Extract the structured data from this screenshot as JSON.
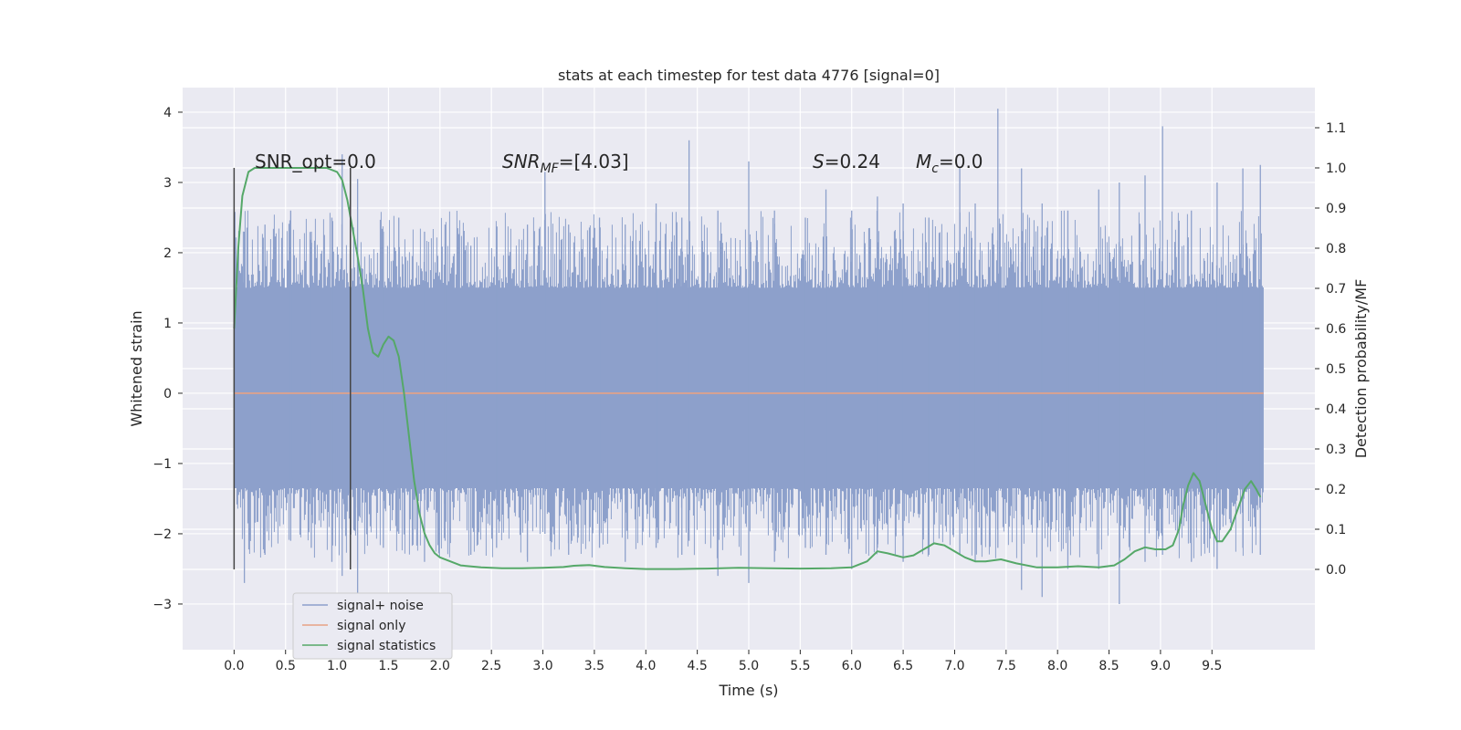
{
  "chart_data": {
    "type": "line",
    "title": "stats at each timestep for test data 4776 [signal=0]",
    "xlabel": "Time (s)",
    "ylabel": "Whitened strain",
    "ylabel_right": "Detection probability/MF",
    "xlim": [
      -0.5,
      10.5
    ],
    "ylim": [
      -3.65,
      4.35
    ],
    "ylim_right": [
      -0.2,
      1.2
    ],
    "x_ticks": [
      "0.0",
      "0.5",
      "1.0",
      "1.5",
      "2.0",
      "2.5",
      "3.0",
      "3.5",
      "4.0",
      "4.5",
      "5.0",
      "5.5",
      "6.0",
      "6.5",
      "7.0",
      "7.5",
      "8.0",
      "8.5",
      "9.0",
      "9.5"
    ],
    "y_ticks": [
      "−3",
      "−2",
      "−1",
      "0",
      "1",
      "2",
      "3",
      "4"
    ],
    "y_right_ticks": [
      "0.0",
      "0.1",
      "0.2",
      "0.3",
      "0.4",
      "0.5",
      "0.6",
      "0.7",
      "0.8",
      "0.9",
      "1.0",
      "1.1"
    ],
    "grid": true,
    "legend_position": "bottom-left",
    "colors": {
      "background": "#eaeaf2",
      "grid": "#ffffff",
      "noise": "#8da0cb",
      "signal": "#e8a285",
      "stats": "#55a868",
      "marker": "#444444"
    },
    "annotations": {
      "snr_opt": "SNR_opt=0.0",
      "snr_mf_prefix": "SNR",
      "snr_mf_sub": "MF",
      "snr_mf_value": "=[4.03]",
      "s_prefix": "S",
      "s_value": "=0.24",
      "mc_prefix": "M",
      "mc_sub": "c",
      "mc_value": "=0.0"
    },
    "vertical_markers": [
      0.0,
      1.13
    ],
    "series": [
      {
        "name": "signal+ noise",
        "axis": "left",
        "kind": "noise",
        "x_range": [
          0.0,
          10.0
        ],
        "band": [
          -1.35,
          1.5
        ],
        "spikes": [
          [
            0.1,
            2.3,
            -2.7
          ],
          [
            0.3,
            2.4,
            -2.3
          ],
          [
            0.55,
            2.6,
            -2.1
          ],
          [
            0.75,
            2.3,
            -2.2
          ],
          [
            0.95,
            2.5,
            -2.4
          ],
          [
            1.05,
            3.4,
            -2.6
          ],
          [
            1.2,
            3.05,
            -2.9
          ],
          [
            1.45,
            2.3,
            -2.2
          ],
          [
            1.6,
            2.5,
            -2.0
          ],
          [
            1.85,
            2.3,
            -2.4
          ],
          [
            2.05,
            2.4,
            -2.1
          ],
          [
            2.3,
            2.1,
            -2.3
          ],
          [
            2.55,
            2.3,
            -2.2
          ],
          [
            2.85,
            2.4,
            -2.4
          ],
          [
            3.02,
            3.15,
            -2.0
          ],
          [
            3.25,
            2.4,
            -2.3
          ],
          [
            3.55,
            2.5,
            -2.2
          ],
          [
            3.8,
            2.4,
            -2.4
          ],
          [
            4.1,
            2.7,
            -2.2
          ],
          [
            4.35,
            2.5,
            -2.3
          ],
          [
            4.42,
            3.6,
            -2.1
          ],
          [
            4.7,
            2.6,
            -2.6
          ],
          [
            5.0,
            3.3,
            -2.7
          ],
          [
            5.25,
            2.6,
            -2.4
          ],
          [
            5.55,
            2.5,
            -2.2
          ],
          [
            5.75,
            2.9,
            -2.3
          ],
          [
            6.0,
            2.6,
            -2.5
          ],
          [
            6.25,
            2.8,
            -2.2
          ],
          [
            6.5,
            2.7,
            -2.4
          ],
          [
            6.75,
            2.5,
            -2.3
          ],
          [
            7.05,
            3.2,
            -2.3
          ],
          [
            7.2,
            2.7,
            -2.4
          ],
          [
            7.42,
            4.05,
            -2.2
          ],
          [
            7.65,
            3.2,
            -2.8
          ],
          [
            7.85,
            2.7,
            -2.9
          ],
          [
            8.1,
            2.6,
            -2.5
          ],
          [
            8.4,
            2.9,
            -2.5
          ],
          [
            8.6,
            3.0,
            -3.0
          ],
          [
            8.85,
            3.1,
            -2.4
          ],
          [
            9.02,
            3.8,
            -2.3
          ],
          [
            9.3,
            2.6,
            -2.4
          ],
          [
            9.55,
            3.0,
            -2.5
          ],
          [
            9.8,
            3.2,
            -2.2
          ],
          [
            9.97,
            3.25,
            -2.3
          ]
        ]
      },
      {
        "name": "signal only",
        "axis": "left",
        "kind": "line",
        "x": [
          0.0,
          10.0
        ],
        "y": [
          0.0,
          0.0
        ]
      },
      {
        "name": "signal statistics",
        "axis": "right",
        "kind": "line",
        "x": [
          0.0,
          0.04,
          0.08,
          0.14,
          0.2,
          0.3,
          0.5,
          0.7,
          0.9,
          1.0,
          1.05,
          1.1,
          1.15,
          1.2,
          1.25,
          1.3,
          1.35,
          1.4,
          1.45,
          1.5,
          1.55,
          1.6,
          1.65,
          1.7,
          1.75,
          1.8,
          1.85,
          1.9,
          1.95,
          2.0,
          2.1,
          2.2,
          2.4,
          2.6,
          2.8,
          3.0,
          3.2,
          3.3,
          3.45,
          3.6,
          3.8,
          4.0,
          4.3,
          4.6,
          4.9,
          5.2,
          5.5,
          5.8,
          6.0,
          6.15,
          6.25,
          6.35,
          6.5,
          6.6,
          6.7,
          6.8,
          6.9,
          7.0,
          7.1,
          7.2,
          7.3,
          7.45,
          7.6,
          7.8,
          8.0,
          8.2,
          8.4,
          8.55,
          8.65,
          8.75,
          8.85,
          8.95,
          9.05,
          9.12,
          9.18,
          9.22,
          9.27,
          9.32,
          9.38,
          9.45,
          9.5,
          9.55,
          9.6,
          9.68,
          9.75,
          9.82,
          9.88,
          9.93,
          9.97
        ],
        "y": [
          0.6,
          0.8,
          0.93,
          0.99,
          1.0,
          1.0,
          1.0,
          1.0,
          1.0,
          0.99,
          0.97,
          0.92,
          0.85,
          0.78,
          0.7,
          0.6,
          0.54,
          0.53,
          0.56,
          0.58,
          0.57,
          0.53,
          0.44,
          0.33,
          0.22,
          0.14,
          0.09,
          0.06,
          0.04,
          0.03,
          0.02,
          0.01,
          0.005,
          0.003,
          0.003,
          0.004,
          0.006,
          0.009,
          0.011,
          0.006,
          0.003,
          0.001,
          0.001,
          0.002,
          0.004,
          0.003,
          0.002,
          0.003,
          0.005,
          0.02,
          0.045,
          0.04,
          0.03,
          0.035,
          0.05,
          0.065,
          0.06,
          0.045,
          0.03,
          0.02,
          0.02,
          0.025,
          0.015,
          0.005,
          0.005,
          0.008,
          0.005,
          0.01,
          0.025,
          0.045,
          0.055,
          0.05,
          0.05,
          0.06,
          0.1,
          0.16,
          0.21,
          0.24,
          0.22,
          0.15,
          0.1,
          0.07,
          0.07,
          0.1,
          0.15,
          0.2,
          0.22,
          0.2,
          0.18
        ]
      }
    ]
  }
}
